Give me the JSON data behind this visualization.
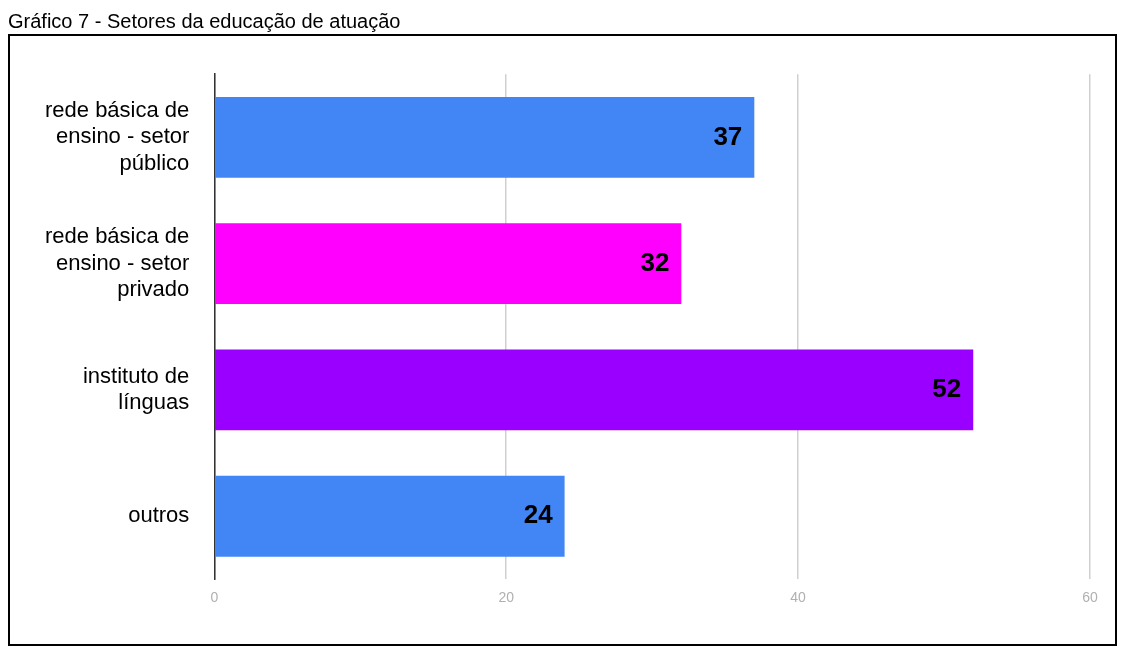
{
  "chart_data": {
    "type": "bar",
    "orientation": "horizontal",
    "title": "Gráfico 7 - Setores da educação de atuação",
    "categories": [
      "rede básica de ensino - setor público",
      "rede básica de ensino - setor privado",
      "instituto de línguas",
      "outros"
    ],
    "values": [
      37,
      32,
      52,
      24
    ],
    "colors": [
      "#4285f4",
      "#ff00ff",
      "#9900ff",
      "#4285f4"
    ],
    "xlim": [
      0,
      60
    ],
    "xticks": [
      0,
      20,
      40,
      60
    ],
    "grid": "x",
    "data_labels": true,
    "legend": false
  }
}
